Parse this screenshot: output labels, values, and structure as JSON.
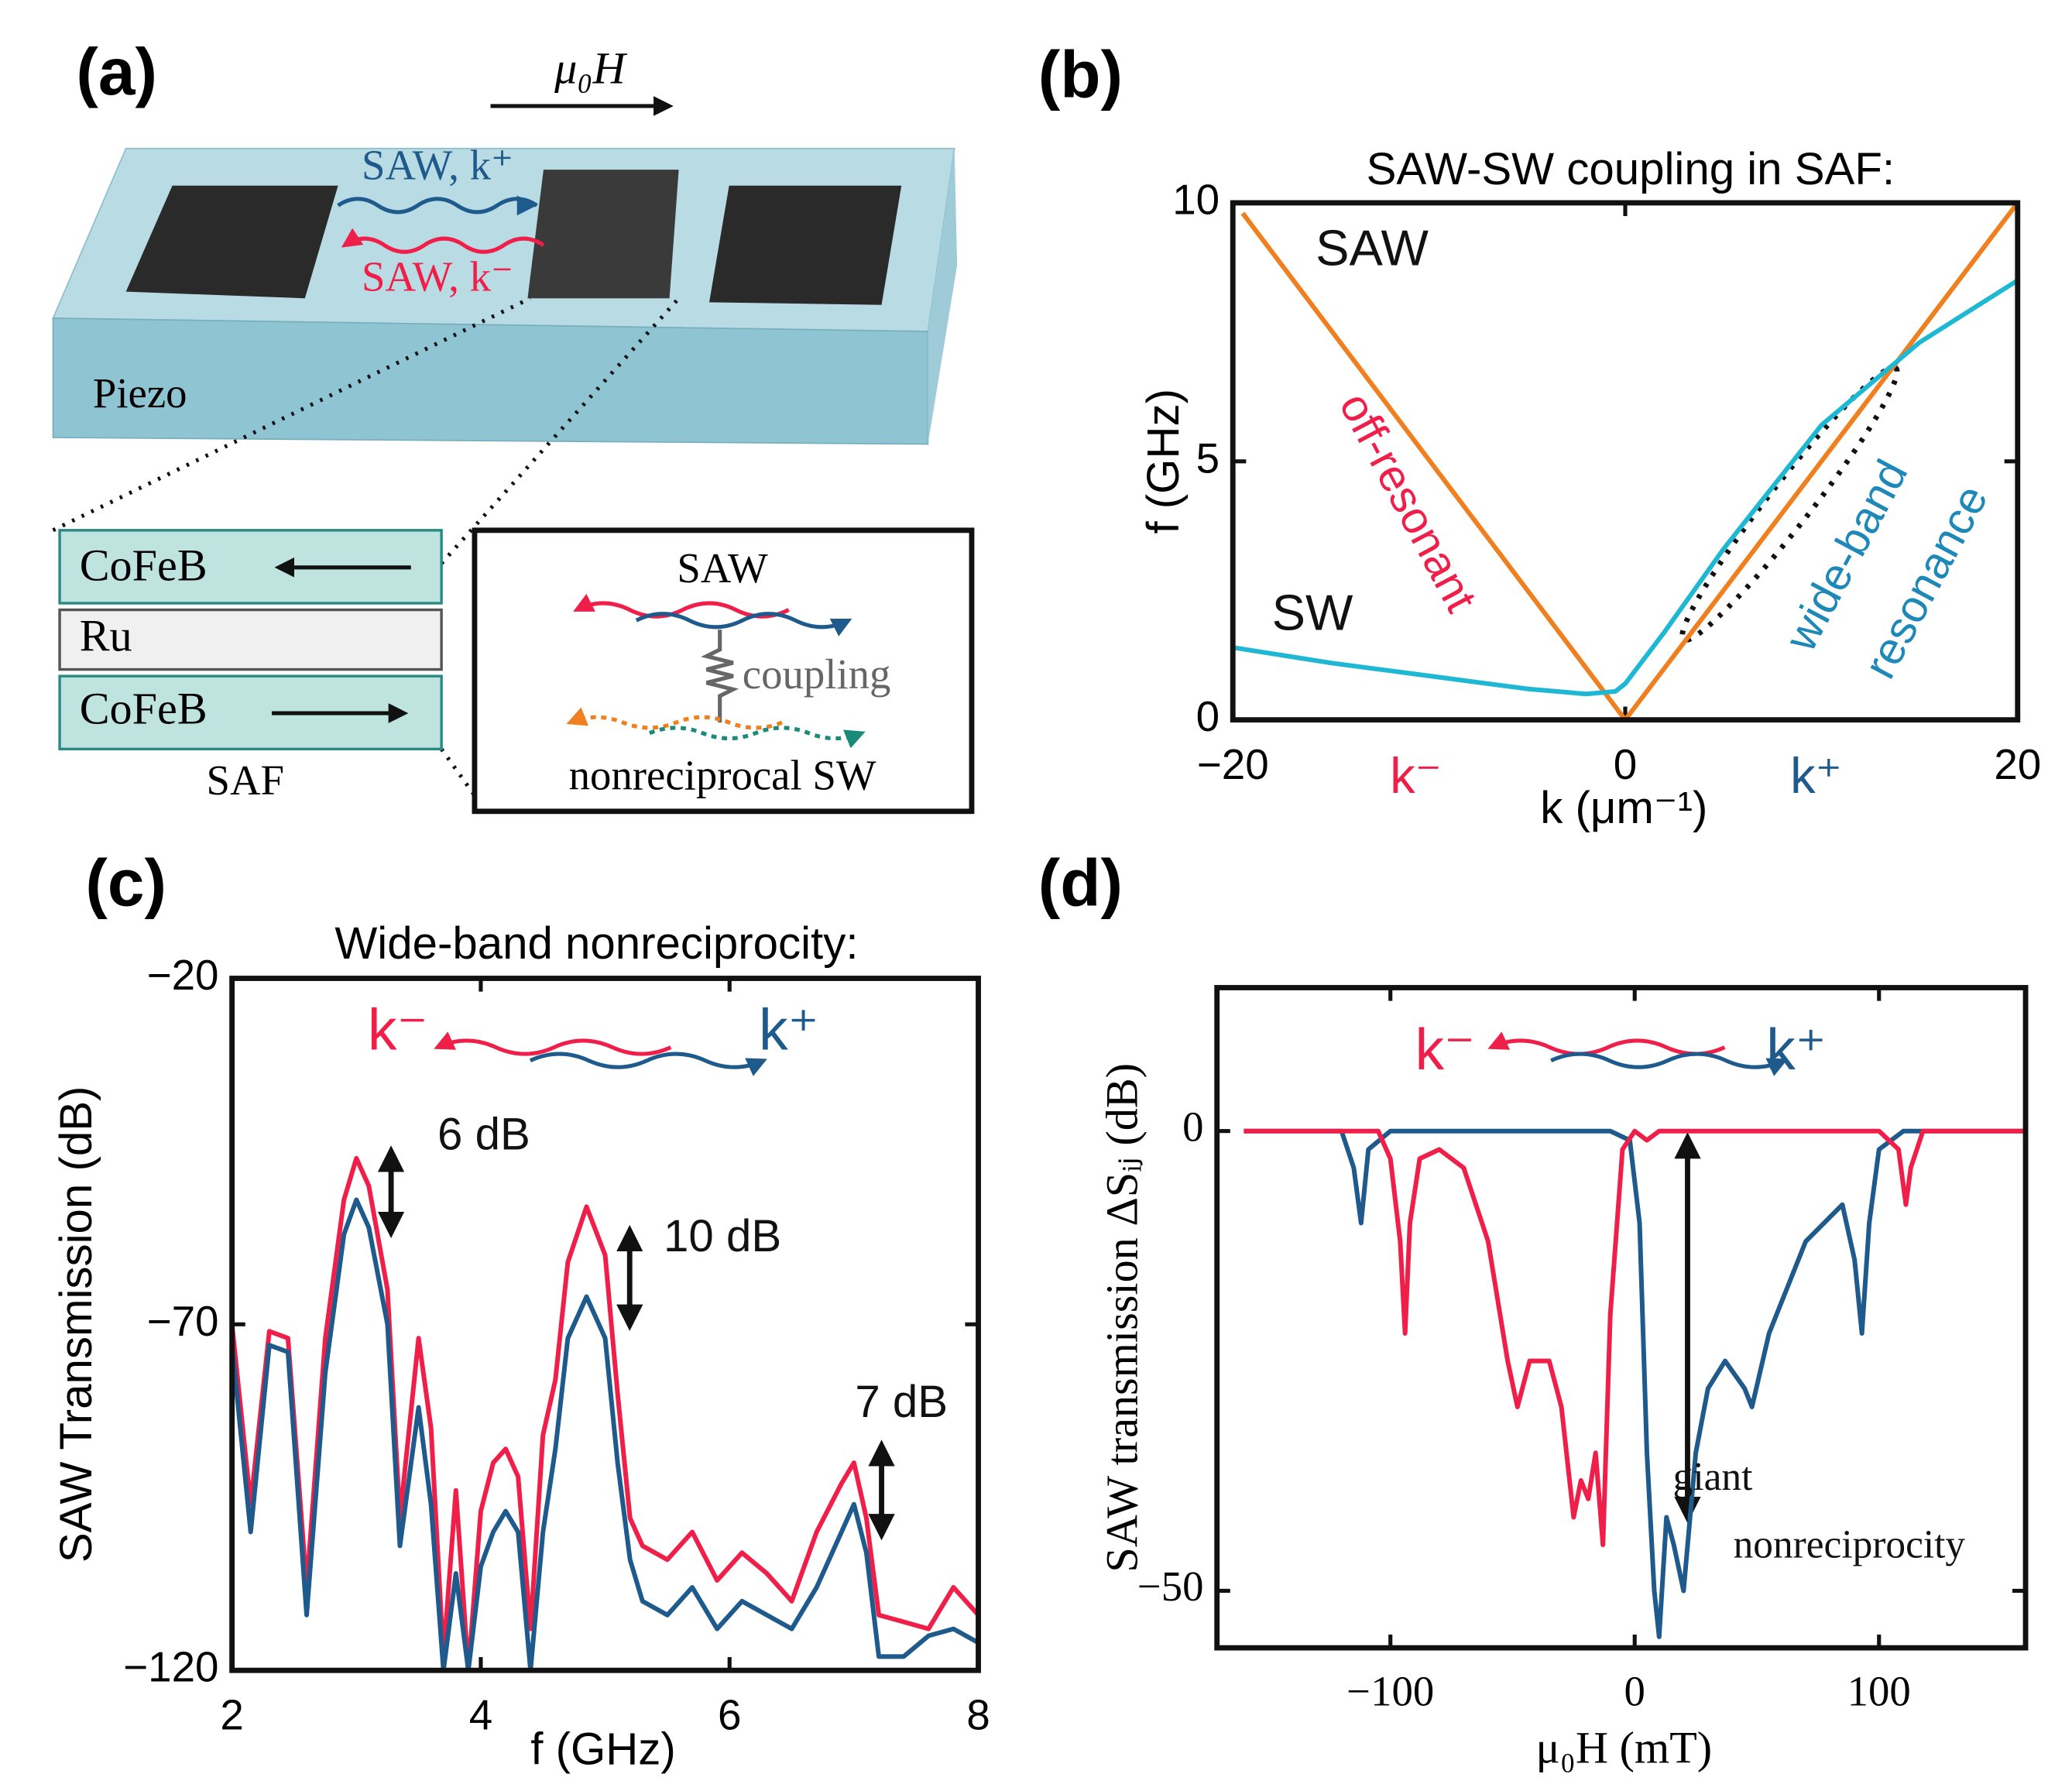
{
  "panel_a": {
    "label": "(a)",
    "field": "μ₀H",
    "saw_plus": "SAW, k⁺",
    "saw_minus": "SAW, k⁻",
    "piezo": "Piezo",
    "layer_top": "CoFeB",
    "layer_mid": "Ru",
    "layer_bottom": "CoFeB",
    "saf": "SAF",
    "inset_saw": "SAW",
    "inset_coupling": "coupling",
    "inset_sw": "nonreciprocal SW"
  },
  "chart_data": [
    {
      "type": "line",
      "label": "(b)",
      "title": "SAW-SW coupling in SAF:",
      "ylabel": "f (GHz)",
      "xlabel": "k (μm⁻¹)",
      "xlim": [
        -20,
        20
      ],
      "ylim": [
        0,
        10
      ],
      "xticks": [
        {
          "value": -20,
          "label": "−20"
        },
        0,
        20
      ],
      "yticks": [
        0,
        5,
        10
      ],
      "series": [
        {
          "name": "SAW",
          "color": "#f07f1f",
          "x": [
            -19.5,
            0,
            20
          ],
          "values": [
            9.8,
            0,
            10
          ]
        },
        {
          "name": "SW",
          "color": "#1fb8d4",
          "x": [
            -20,
            -15,
            -10,
            -5,
            -2,
            -0.5,
            0,
            2,
            5,
            10,
            15,
            20
          ],
          "values": [
            1.4,
            1.1,
            0.85,
            0.6,
            0.5,
            0.55,
            0.7,
            1.7,
            3.3,
            5.7,
            7.3,
            8.5
          ]
        }
      ],
      "annotations": [
        {
          "text": "SAW",
          "color": "#111"
        },
        {
          "text": "SW",
          "color": "#111"
        },
        {
          "text": "off-resonant",
          "color": "#ef1f4a"
        },
        {
          "text": "wide-band",
          "color": "#1e88b8"
        },
        {
          "text": "resonance",
          "color": "#1e88b8"
        },
        {
          "text": "k⁻",
          "color": "#ef1f4a"
        },
        {
          "text": "k⁺",
          "color": "#1e5a8c"
        }
      ]
    },
    {
      "type": "line",
      "label": "(c)",
      "title": "Wide-band nonreciprocity:",
      "ylabel": "SAW Transmission (dB)",
      "xlabel": "f (GHz)",
      "xlim": [
        2,
        8
      ],
      "ylim": [
        -120,
        -20
      ],
      "xticks": [
        2,
        4,
        6,
        8
      ],
      "yticks": [
        {
          "value": -120,
          "label": "−120"
        },
        {
          "value": -70,
          "label": "−70"
        },
        {
          "value": -20,
          "label": "−20"
        }
      ],
      "series": [
        {
          "name": "k⁻",
          "color": "#ef1f4a",
          "x": [
            2.0,
            2.15,
            2.3,
            2.45,
            2.6,
            2.75,
            2.9,
            3.0,
            3.1,
            3.25,
            3.35,
            3.5,
            3.6,
            3.7,
            3.8,
            3.9,
            4.0,
            4.1,
            4.2,
            4.3,
            4.4,
            4.5,
            4.6,
            4.7,
            4.85,
            5.0,
            5.1,
            5.2,
            5.3,
            5.5,
            5.7,
            5.9,
            6.1,
            6.3,
            6.5,
            6.7,
            6.9,
            7.0,
            7.1,
            7.2,
            7.4,
            7.6,
            7.8,
            8.0
          ],
          "values": [
            -70,
            -96,
            -71,
            -72,
            -108,
            -72,
            -52,
            -46,
            -50,
            -65,
            -98,
            -72,
            -85,
            -118,
            -94,
            -120,
            -97,
            -90,
            -88,
            -92,
            -114,
            -86,
            -78,
            -61,
            -53,
            -60,
            -80,
            -98,
            -102,
            -104,
            -100,
            -107,
            -103,
            -106,
            -110,
            -100,
            -93,
            -90,
            -98,
            -112,
            -113,
            -114,
            -108,
            -112
          ]
        },
        {
          "name": "k⁺",
          "color": "#1e5a8c",
          "x": [
            2.0,
            2.15,
            2.3,
            2.45,
            2.6,
            2.75,
            2.9,
            3.0,
            3.1,
            3.25,
            3.35,
            3.5,
            3.6,
            3.7,
            3.8,
            3.9,
            4.0,
            4.1,
            4.2,
            4.3,
            4.4,
            4.5,
            4.6,
            4.7,
            4.85,
            5.0,
            5.1,
            5.2,
            5.3,
            5.5,
            5.7,
            5.9,
            6.1,
            6.3,
            6.5,
            6.7,
            6.9,
            7.0,
            7.1,
            7.2,
            7.4,
            7.6,
            7.8,
            8.0
          ],
          "values": [
            -73,
            -100,
            -73,
            -74,
            -112,
            -77,
            -57,
            -52,
            -56,
            -70,
            -102,
            -82,
            -96,
            -120,
            -106,
            -120,
            -105,
            -100,
            -97,
            -100,
            -120,
            -100,
            -88,
            -72,
            -66,
            -72,
            -90,
            -104,
            -110,
            -112,
            -108,
            -114,
            -110,
            -112,
            -114,
            -108,
            -100,
            -96,
            -103,
            -118,
            -118,
            -115,
            -114,
            -116
          ]
        }
      ],
      "annotations": [
        {
          "text": "k⁻",
          "color": "#ef1f4a"
        },
        {
          "text": "k⁺",
          "color": "#1e5a8c"
        },
        {
          "text": "6 dB",
          "color": "#111"
        },
        {
          "text": "10 dB",
          "color": "#111"
        },
        {
          "text": "7 dB",
          "color": "#111"
        }
      ]
    },
    {
      "type": "line",
      "label": "(d)",
      "ylabel": "SAW transmission ΔSᵢⱼ (dB)",
      "xlabel": "μ₀H (mT)",
      "xlim": [
        -171,
        160
      ],
      "ylim": [
        -56.2,
        15.6
      ],
      "xticks": [
        {
          "value": -100,
          "label": "−100"
        },
        0,
        100
      ],
      "yticks": [
        {
          "value": -50,
          "label": "−50"
        },
        0
      ],
      "series": [
        {
          "name": "k⁺",
          "color": "#1e5a8c",
          "x": [
            -160,
            -120,
            -115,
            -112,
            -109,
            -100,
            -10,
            -2,
            2,
            5,
            8,
            10,
            13,
            16,
            20,
            25,
            30,
            37,
            45,
            48,
            55,
            70,
            85,
            90,
            93,
            96,
            100,
            110,
            160
          ],
          "values": [
            0,
            0,
            -4,
            -10,
            -2,
            0,
            0,
            -1,
            -10,
            -35,
            -50,
            -55,
            -42,
            -45,
            -50,
            -35,
            -28,
            -25,
            -28,
            -30,
            -22,
            -12,
            -8,
            -14,
            -22,
            -10,
            -2,
            0,
            0
          ]
        },
        {
          "name": "k⁻",
          "color": "#ef1f4a",
          "x": [
            -160,
            -105,
            -100,
            -96,
            -94,
            -92,
            -88,
            -80,
            -70,
            -60,
            -52,
            -48,
            -43,
            -35,
            -30,
            -25,
            -22,
            -19,
            -16,
            -13,
            -10,
            -5,
            0,
            5,
            10,
            100,
            108,
            111,
            113,
            118,
            160
          ],
          "values": [
            0,
            0,
            -3,
            -12,
            -22,
            -10,
            -3,
            -2,
            -4,
            -12,
            -25,
            -30,
            -25,
            -25,
            -30,
            -42,
            -38,
            -40,
            -35,
            -45,
            -20,
            -2,
            0,
            -1,
            0,
            0,
            -2,
            -8,
            -4,
            0,
            0
          ]
        }
      ],
      "annotations": [
        {
          "text": "k⁻",
          "color": "#ef1f4a"
        },
        {
          "text": "k⁺",
          "color": "#1e5a8c"
        },
        {
          "text": "giant",
          "color": "#111"
        },
        {
          "text": "nonreciprocity",
          "color": "#111"
        }
      ]
    }
  ]
}
